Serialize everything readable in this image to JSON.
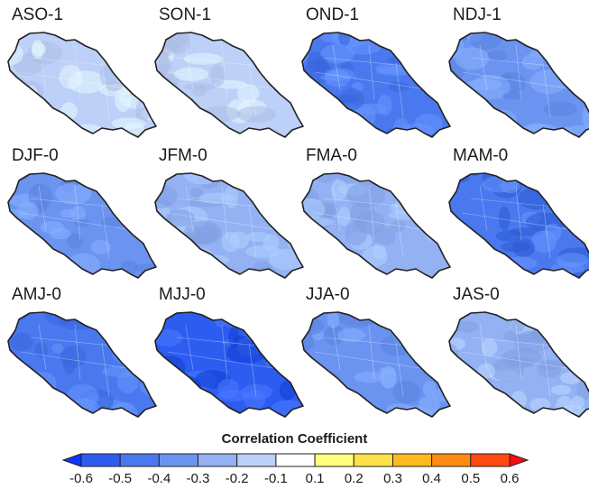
{
  "panels": [
    {
      "label": "ASO-1",
      "value": -0.15,
      "stipple": "light"
    },
    {
      "label": "SON-1",
      "value": -0.12,
      "stipple": "light"
    },
    {
      "label": "OND-1",
      "value": -0.45,
      "stipple": "mixed"
    },
    {
      "label": "NDJ-1",
      "value": -0.38,
      "stipple": "mixed"
    },
    {
      "label": "DJF-0",
      "value": -0.32,
      "stipple": "mixed"
    },
    {
      "label": "JFM-0",
      "value": -0.28,
      "stipple": "mixed"
    },
    {
      "label": "FMA-0",
      "value": -0.22,
      "stipple": "mixed"
    },
    {
      "label": "MAM-0",
      "value": -0.45,
      "stipple": "dark"
    },
    {
      "label": "AMJ-0",
      "value": -0.42,
      "stipple": "mixed"
    },
    {
      "label": "MJJ-0",
      "value": -0.52,
      "stipple": "dark"
    },
    {
      "label": "JJA-0",
      "value": -0.35,
      "stipple": "mixed"
    },
    {
      "label": "JAS-0",
      "value": -0.2,
      "stipple": "light"
    }
  ],
  "colorbar": {
    "title": "Correlation Coefficient",
    "ticks": [
      "-0.6",
      "-0.5",
      "-0.4",
      "-0.3",
      "-0.2",
      "-0.1",
      "0.1",
      "0.2",
      "0.3",
      "0.4",
      "0.5",
      "0.6"
    ],
    "colors": [
      "#0a36ff",
      "#2d5cf0",
      "#4a78ee",
      "#6b93f0",
      "#93b1f3",
      "#bdd0f7",
      "#ffffff",
      "#ffff80",
      "#ffe24a",
      "#ffba1e",
      "#ff8a10",
      "#ff4a10",
      "#ff0a10"
    ]
  }
}
